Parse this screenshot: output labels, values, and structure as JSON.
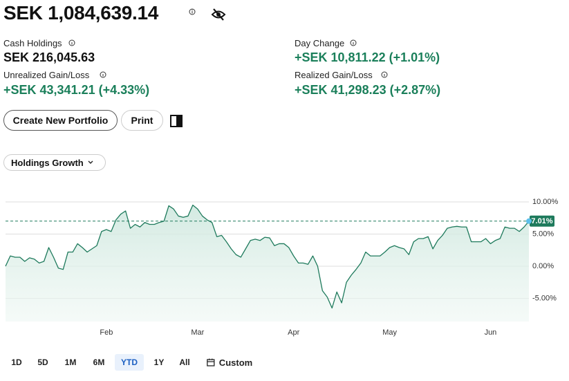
{
  "header": {
    "total": "SEK 1,084,639.14"
  },
  "metrics": [
    {
      "label": "Cash Holdings",
      "value": "SEK 216,045.63"
    },
    {
      "label": "Day Change",
      "value": "+SEK 10,811.22 (+1.01%)"
    },
    {
      "label": "Unrealized Gain/Loss",
      "value": "+SEK 43,341.21 (+4.33%)"
    },
    {
      "label": "Realized Gain/Loss",
      "value": "+SEK 41,298.23 (+2.87%)"
    }
  ],
  "actions": [
    "Create New Portfolio",
    "Print"
  ],
  "view_selector": "Holdings Growth",
  "chart_data": {
    "type": "line",
    "categories": [
      null,
      null,
      null,
      null,
      null,
      null,
      null,
      null,
      null,
      null,
      null,
      null,
      null,
      null,
      null,
      null,
      null,
      null,
      null,
      null,
      null,
      "Feb",
      null,
      null,
      null,
      null,
      null,
      null,
      null,
      null,
      null,
      null,
      null,
      null,
      null,
      null,
      null,
      null,
      null,
      null,
      "Mar",
      null,
      null,
      null,
      null,
      null,
      null,
      null,
      null,
      null,
      null,
      null,
      null,
      null,
      null,
      null,
      null,
      null,
      null,
      null,
      "Apr",
      null,
      null,
      null,
      null,
      null,
      null,
      null,
      null,
      null,
      null,
      null,
      null,
      null,
      null,
      null,
      null,
      null,
      null,
      null,
      "May",
      null,
      null,
      null,
      null,
      null,
      null,
      null,
      null,
      null,
      null,
      null,
      null,
      null,
      null,
      null,
      null,
      null,
      null,
      null,
      null,
      "Jun",
      null,
      null,
      null,
      null,
      null,
      null,
      null,
      null
    ],
    "values": [
      0,
      1.6,
      1.4,
      1.4,
      0.75,
      1.3,
      1.1,
      0.5,
      0.75,
      2.9,
      1.4,
      -0.3,
      -0.5,
      2.2,
      2.2,
      3.5,
      2.9,
      2.2,
      2.7,
      3.2,
      5.4,
      5.7,
      5.4,
      7.2,
      8.1,
      8.6,
      5.9,
      6.5,
      6.1,
      6.8,
      6.5,
      6.5,
      6.8,
      7.0,
      9.4,
      8.9,
      7.8,
      7.6,
      7.8,
      9.5,
      8.9,
      7.8,
      7.2,
      6.8,
      4.6,
      4.8,
      3.8,
      2.7,
      1.8,
      1.4,
      2.7,
      4.0,
      4.2,
      4.0,
      4.5,
      4.4,
      3.2,
      3.5,
      3.5,
      2.9,
      1.6,
      0.5,
      0.5,
      0.3,
      1.6,
      0,
      -3.8,
      -4.8,
      -6.5,
      -4.0,
      -5.7,
      -2.5,
      -1.4,
      -0.5,
      0.5,
      2.2,
      1.6,
      1.6,
      1.6,
      2.2,
      2.9,
      3.2,
      2.9,
      2.7,
      1.8,
      3.8,
      4.3,
      4.3,
      4.6,
      2.7,
      4.0,
      4.8,
      5.9,
      6.1,
      6.2,
      6.1,
      6.1,
      3.8,
      3.8,
      3.8,
      4.3,
      3.5,
      4.0,
      4.3,
      6.1,
      5.9,
      5.9,
      5.4,
      6.1,
      7.01
    ],
    "color": "#1e7a5c",
    "ylim": [
      -8.6,
      12.9
    ],
    "yticks": [
      {
        "value": 10,
        "label": "10.00%"
      },
      {
        "value": 5,
        "label": "5.00%"
      },
      {
        "value": 0,
        "label": "0.00%"
      },
      {
        "value": -5,
        "label": "-5.00%"
      }
    ],
    "grid": true,
    "reference_line": {
      "value": 7.01,
      "label": "7.01%"
    }
  },
  "ranges": [
    "1D",
    "5D",
    "1M",
    "6M",
    "YTD",
    "1Y",
    "All",
    "Custom"
  ],
  "selected_range": 4
}
